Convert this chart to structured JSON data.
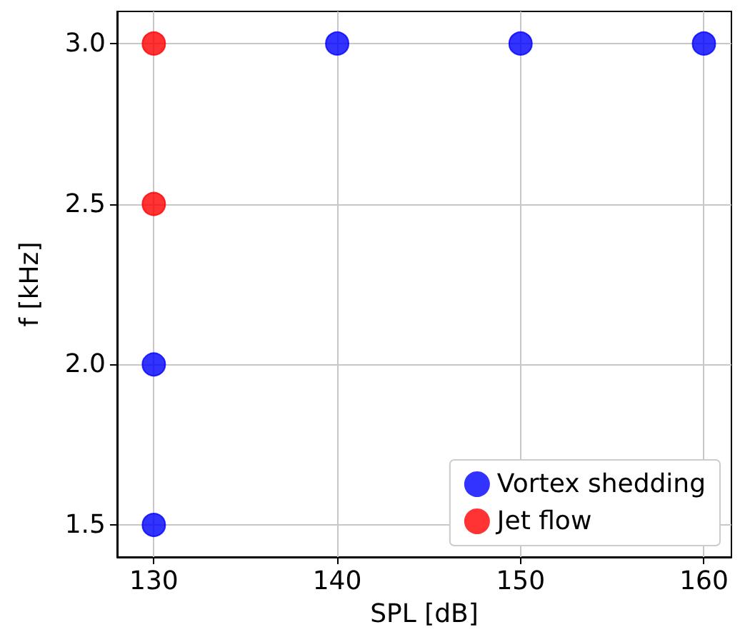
{
  "chart_data": {
    "type": "scatter",
    "xlabel": "SPL [dB]",
    "ylabel": "f [kHz]",
    "xlim": [
      128,
      161.5
    ],
    "xticks": [
      130,
      140,
      150,
      160
    ],
    "ylim": [
      1.4,
      3.1
    ],
    "yticks": [
      1.5,
      {
        "value": 2,
        "label": "2.0"
      },
      2.5,
      {
        "value": 3,
        "label": "3.0"
      }
    ],
    "grid": true,
    "legend": "bottom right",
    "marker": "circle",
    "series": [
      {
        "name": "Vortex shedding",
        "color": "#0000ff",
        "x": [
          130,
          130,
          140,
          150,
          160
        ],
        "values": [
          1.5,
          2.0,
          3.0,
          3.0,
          3.0
        ]
      },
      {
        "name": "Jet flow",
        "color": "#ff0000",
        "x": [
          130,
          130
        ],
        "values": [
          2.5,
          3.0
        ]
      }
    ]
  }
}
